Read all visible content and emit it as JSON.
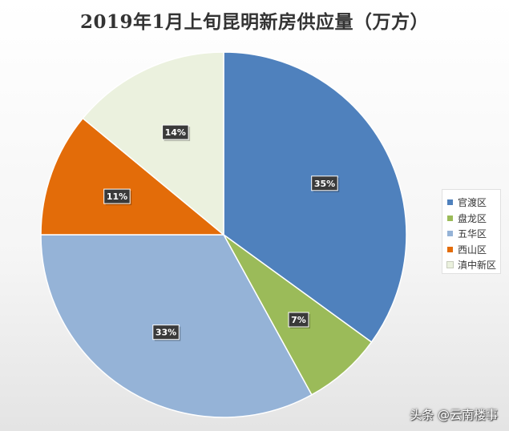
{
  "chart_data": {
    "type": "pie",
    "title": "2019年1月上旬昆明新房供应量（万方）",
    "categories": [
      "官渡区",
      "盘龙区",
      "五华区",
      "西山区",
      "滇中新区"
    ],
    "values": [
      35,
      7,
      33,
      11,
      14
    ],
    "value_labels": [
      "35%",
      "7%",
      "33%",
      "11%",
      "14%"
    ],
    "colors": [
      "#4f81bd",
      "#9bbb59",
      "#95b3d7",
      "#e36c09",
      "#ebf1de"
    ],
    "legend_position": "right",
    "start_angle": "top, clockwise"
  },
  "watermark": "头条 @云南楼事"
}
